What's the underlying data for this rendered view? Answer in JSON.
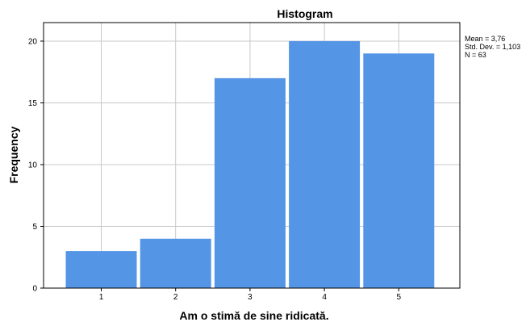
{
  "chart_data": {
    "type": "bar",
    "title": "Histogram",
    "xlabel": "Am o stimă de sine ridicată.",
    "ylabel": "Frequency",
    "categories": [
      "1",
      "2",
      "3",
      "4",
      "5"
    ],
    "values": [
      3,
      4,
      17,
      20,
      19
    ],
    "ylim": [
      0,
      21.5
    ],
    "yticks": [
      "0",
      "5",
      "10",
      "15",
      "20"
    ],
    "grid": true,
    "bar_color": "#5595e5",
    "stats": {
      "mean": "Mean = 3,76",
      "std": "Std. Dev. = 1,103",
      "n": "N = 63"
    }
  }
}
